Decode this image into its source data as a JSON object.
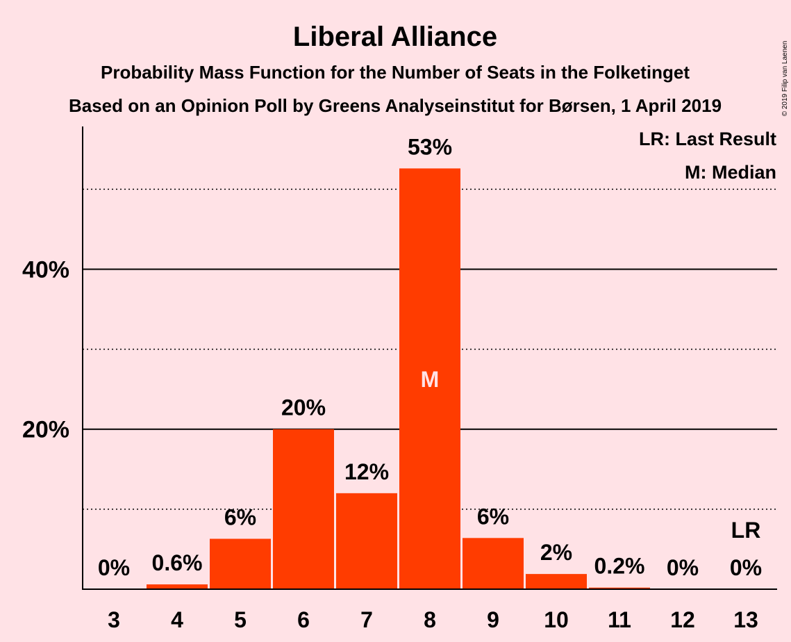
{
  "chart_data": {
    "type": "bar",
    "title": "Liberal Alliance",
    "subtitle1": "Probability Mass Function for the Number of Seats in the Folketinget",
    "subtitle2": "Based on an Opinion Poll by Greens Analyseinstitut for Børsen, 1 April 2019",
    "copyright": "© 2019 Filip van Laenen",
    "categories": [
      "3",
      "4",
      "5",
      "6",
      "7",
      "8",
      "9",
      "10",
      "11",
      "12",
      "13"
    ],
    "values": [
      0,
      0.6,
      6.3,
      20,
      12,
      52.6,
      6.4,
      1.9,
      0.2,
      0,
      0
    ],
    "labels": [
      "0%",
      "0.6%",
      "6%",
      "20%",
      "12%",
      "53%",
      "6%",
      "2%",
      "0.2%",
      "0%",
      "0%"
    ],
    "yticks": [
      {
        "value": 20,
        "label": "20%"
      },
      {
        "value": 40,
        "label": "40%"
      }
    ],
    "minor_gridlines": [
      10,
      30,
      50
    ],
    "ylim": [
      0,
      57.5
    ],
    "bar_color": "#FF3C00",
    "median_index": 5,
    "median_marker": "M",
    "last_result_index": 10,
    "last_result_marker": "LR",
    "legend": [
      "LR: Last Result",
      "M: Median"
    ],
    "legend_position": "top-right"
  }
}
